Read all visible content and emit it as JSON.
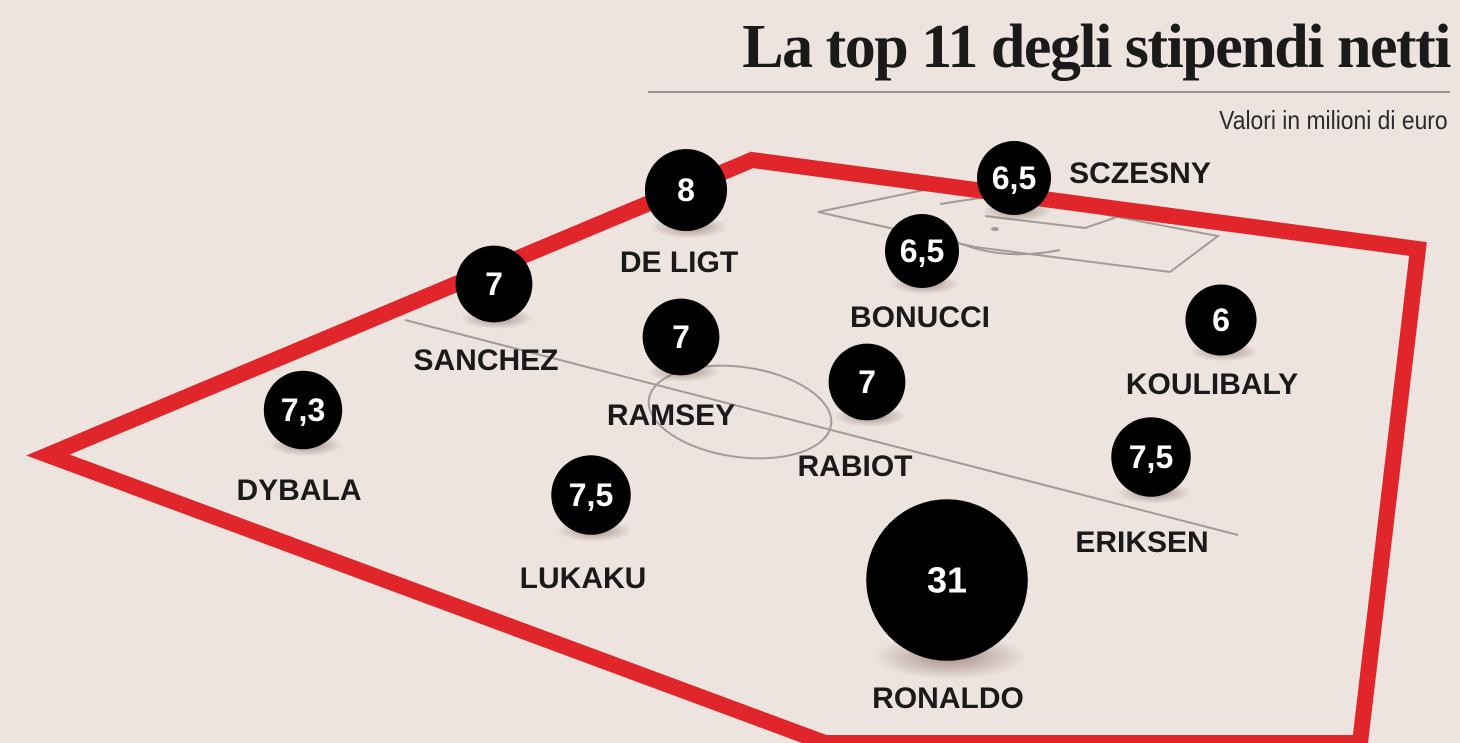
{
  "header": {
    "title": "La top 11 degli stipendi netti",
    "subtitle": "Valori in milioni di euro"
  },
  "colors": {
    "background": "#ede4df",
    "field_border": "#e0262b",
    "field_lines": "#a39b97",
    "bubble": "#000000"
  },
  "chart_data": {
    "type": "bubble",
    "title": "La top 11 degli stipendi netti",
    "subtitle": "Valori in milioni di euro",
    "unit": "milioni di euro",
    "players": [
      {
        "name": "SCZESNY",
        "value": 6.5,
        "label": "6,5"
      },
      {
        "name": "DE LIGT",
        "value": 8,
        "label": "8"
      },
      {
        "name": "BONUCCI",
        "value": 6.5,
        "label": "6,5"
      },
      {
        "name": "SANCHEZ",
        "value": 7,
        "label": "7"
      },
      {
        "name": "RAMSEY",
        "value": 7,
        "label": "7"
      },
      {
        "name": "KOULIBALY",
        "value": 6,
        "label": "6"
      },
      {
        "name": "RABIOT",
        "value": 7,
        "label": "7"
      },
      {
        "name": "DYBALA",
        "value": 7.3,
        "label": "7,3"
      },
      {
        "name": "ERIKSEN",
        "value": 7.5,
        "label": "7,5"
      },
      {
        "name": "LUKAKU",
        "value": 7.5,
        "label": "7,5"
      },
      {
        "name": "RONALDO",
        "value": 31,
        "label": "31"
      }
    ]
  }
}
